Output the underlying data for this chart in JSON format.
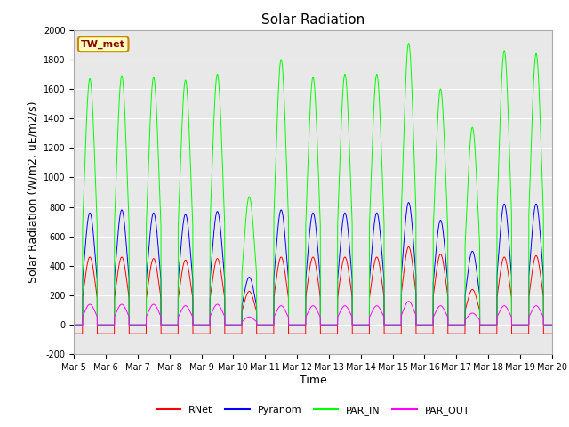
{
  "title": "Solar Radiation",
  "ylabel": "Solar Radiation (W/m2, uE/m2/s)",
  "xlabel": "Time",
  "ylim": [
    -200,
    2000
  ],
  "xtick_labels": [
    "Mar 5",
    "Mar 6",
    "Mar 7",
    "Mar 8",
    "Mar 9",
    "Mar 10",
    "Mar 11",
    "Mar 12",
    "Mar 13",
    "Mar 14",
    "Mar 15",
    "Mar 16",
    "Mar 17",
    "Mar 18",
    "Mar 19",
    "Mar 20"
  ],
  "ytick_labels": [
    "-200",
    "0",
    "200",
    "400",
    "600",
    "800",
    "1000",
    "1200",
    "1400",
    "1600",
    "1800",
    "2000"
  ],
  "ytick_values": [
    -200,
    0,
    200,
    400,
    600,
    800,
    1000,
    1200,
    1400,
    1600,
    1800,
    2000
  ],
  "station_label": "TW_met",
  "legend_entries": [
    "RNet",
    "Pyranom",
    "PAR_IN",
    "PAR_OUT"
  ],
  "line_colors": {
    "RNet": "#ff0000",
    "Pyranom": "#0000ff",
    "PAR_IN": "#00ff00",
    "PAR_OUT": "#ff00ff"
  },
  "background_color": "#e8e8e8",
  "grid_color": "#ffffff",
  "title_fontsize": 11,
  "axis_fontsize": 9,
  "tick_fontsize": 7,
  "legend_fontsize": 8
}
